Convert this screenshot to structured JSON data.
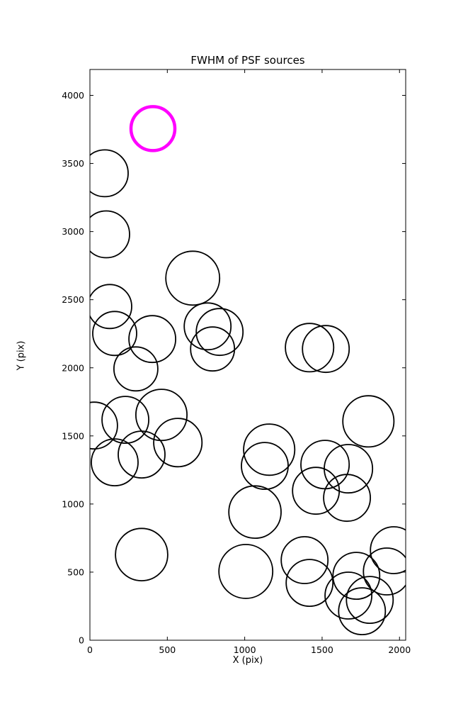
{
  "title": "FWHM of PSF sources",
  "chart_data": {
    "type": "scatter",
    "title": "FWHM of PSF sources",
    "xlabel": "X (pix)",
    "ylabel": "Y (pix)",
    "xlim": [
      0,
      2040
    ],
    "ylim": [
      0,
      4190
    ],
    "xticks": [
      0,
      500,
      1000,
      1500,
      2000
    ],
    "yticks": [
      0,
      500,
      1000,
      1500,
      2000,
      2500,
      3000,
      3500,
      4000
    ],
    "grid": false,
    "legend": "none",
    "marker": "open-circle-sized-by-fwhm",
    "circle_color": "#000000",
    "highlight_color": "#FF00FF",
    "axis_color": "#000000",
    "highlighted_source": {
      "x": 407,
      "y": 3756,
      "r": 142
    },
    "sources": [
      [
        96,
        3428,
        151
      ],
      [
        105,
        2980,
        151
      ],
      [
        128,
        2450,
        142
      ],
      [
        160,
        2252,
        142
      ],
      [
        403,
        2211,
        151
      ],
      [
        297,
        1992,
        142
      ],
      [
        664,
        2658,
        174
      ],
      [
        760,
        2304,
        151
      ],
      [
        838,
        2263,
        151
      ],
      [
        792,
        2138,
        142
      ],
      [
        1419,
        2148,
        156
      ],
      [
        1524,
        2138,
        151
      ],
      [
        27,
        1576,
        151
      ],
      [
        229,
        1618,
        151
      ],
      [
        462,
        1654,
        165
      ],
      [
        160,
        1306,
        151
      ],
      [
        334,
        1363,
        151
      ],
      [
        568,
        1451,
        156
      ],
      [
        1799,
        1607,
        165
      ],
      [
        1158,
        1399,
        165
      ],
      [
        1130,
        1280,
        151
      ],
      [
        1519,
        1290,
        156
      ],
      [
        1670,
        1259,
        156
      ],
      [
        1460,
        1097,
        151
      ],
      [
        1661,
        1045,
        151
      ],
      [
        1066,
        941,
        169
      ],
      [
        1007,
        505,
        174
      ],
      [
        1387,
        588,
        151
      ],
      [
        1419,
        421,
        151
      ],
      [
        1963,
        661,
        151
      ],
      [
        1918,
        505,
        151
      ],
      [
        1721,
        473,
        151
      ],
      [
        1670,
        328,
        151
      ],
      [
        1808,
        296,
        151
      ],
      [
        1758,
        213,
        151
      ],
      [
        334,
        629,
        169
      ]
    ]
  }
}
